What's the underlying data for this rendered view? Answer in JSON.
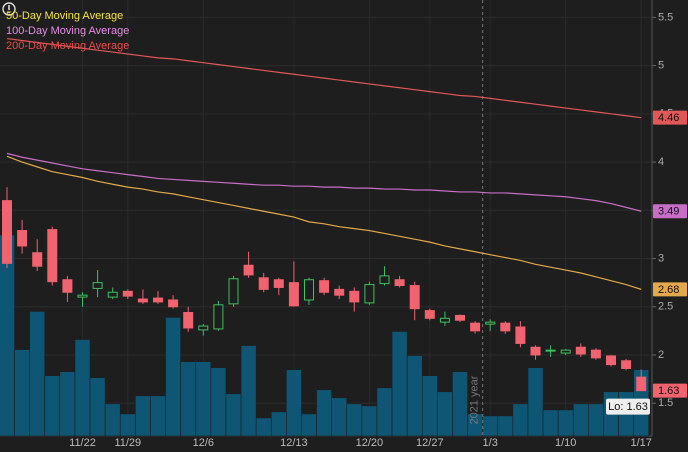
{
  "chart_data": {
    "type": "candlestick",
    "categories": [
      null,
      null,
      null,
      null,
      null,
      "11/22",
      null,
      null,
      "11/29",
      null,
      null,
      null,
      null,
      "12/6",
      null,
      null,
      null,
      null,
      null,
      "12/13",
      null,
      null,
      null,
      null,
      "12/20",
      null,
      null,
      null,
      "12/27",
      null,
      null,
      null,
      "1/3",
      null,
      null,
      null,
      null,
      "1/10",
      null,
      null,
      null,
      null,
      "1/17"
    ],
    "open": [
      3.6,
      3.29,
      3.06,
      3.3,
      2.78,
      2.6,
      2.69,
      2.6,
      2.66,
      2.58,
      2.59,
      2.57,
      2.44,
      2.26,
      2.27,
      2.53,
      2.93,
      2.8,
      2.78,
      2.75,
      2.57,
      2.77,
      2.68,
      2.66,
      2.54,
      2.74,
      2.78,
      2.72,
      2.46,
      2.34,
      2.41,
      2.33,
      2.32,
      2.33,
      2.29,
      2.08,
      2.04,
      2.02,
      2.08,
      2.05,
      1.99,
      1.94,
      1.77
    ],
    "high": [
      3.74,
      3.4,
      3.2,
      3.33,
      2.82,
      2.65,
      2.88,
      2.7,
      2.68,
      2.68,
      2.66,
      2.62,
      2.5,
      2.32,
      2.56,
      2.82,
      3.07,
      2.85,
      2.8,
      2.97,
      2.8,
      2.8,
      2.72,
      2.7,
      2.76,
      2.92,
      2.82,
      2.76,
      2.48,
      2.45,
      2.42,
      2.35,
      2.37,
      2.35,
      2.35,
      2.1,
      2.1,
      2.06,
      2.12,
      2.07,
      2.0,
      1.96,
      1.85
    ],
    "low": [
      2.9,
      3.05,
      2.87,
      2.72,
      2.55,
      2.5,
      2.6,
      2.58,
      2.58,
      2.53,
      2.53,
      2.48,
      2.24,
      2.2,
      2.25,
      2.5,
      2.8,
      2.65,
      2.62,
      2.5,
      2.52,
      2.62,
      2.58,
      2.45,
      2.52,
      2.72,
      2.7,
      2.36,
      2.36,
      2.3,
      2.34,
      2.22,
      2.25,
      2.22,
      2.08,
      1.95,
      1.98,
      2.0,
      1.98,
      1.95,
      1.88,
      1.84,
      1.63
    ],
    "close": [
      2.95,
      3.13,
      2.92,
      2.76,
      2.65,
      2.62,
      2.75,
      2.65,
      2.61,
      2.55,
      2.55,
      2.5,
      2.28,
      2.3,
      2.52,
      2.79,
      2.83,
      2.68,
      2.7,
      2.51,
      2.78,
      2.65,
      2.62,
      2.55,
      2.73,
      2.82,
      2.72,
      2.48,
      2.38,
      2.38,
      2.36,
      2.25,
      2.34,
      2.25,
      2.12,
      2.0,
      2.05,
      2.05,
      2.01,
      1.97,
      1.9,
      1.86,
      1.63
    ],
    "volume": [
      100,
      43,
      62,
      30,
      32,
      48,
      29,
      16,
      11,
      20,
      20,
      59,
      37,
      37,
      34,
      21,
      45,
      9,
      12,
      33,
      11,
      23,
      19,
      16,
      15,
      24,
      52,
      40,
      30,
      22,
      32,
      11,
      10,
      10,
      16,
      34,
      13,
      13,
      16,
      16,
      22,
      22,
      33
    ],
    "series": [
      {
        "name": "50-Day Moving Average",
        "color": "#e3a94a",
        "label_color": "#f2e43c",
        "values": [
          4.06,
          4.0,
          3.95,
          3.9,
          3.87,
          3.84,
          3.8,
          3.77,
          3.74,
          3.72,
          3.69,
          3.67,
          3.64,
          3.61,
          3.58,
          3.55,
          3.52,
          3.49,
          3.46,
          3.43,
          3.38,
          3.36,
          3.33,
          3.31,
          3.29,
          3.26,
          3.23,
          3.2,
          3.17,
          3.13,
          3.1,
          3.07,
          3.04,
          3.01,
          2.98,
          2.94,
          2.91,
          2.88,
          2.85,
          2.81,
          2.77,
          2.73,
          2.68
        ]
      },
      {
        "name": "100-Day Moving Average",
        "color": "#c86ec8",
        "label_color": "#e58ce5",
        "values": [
          4.09,
          4.05,
          4.02,
          3.99,
          3.96,
          3.93,
          3.91,
          3.89,
          3.87,
          3.85,
          3.83,
          3.82,
          3.81,
          3.8,
          3.79,
          3.78,
          3.77,
          3.76,
          3.76,
          3.75,
          3.75,
          3.74,
          3.74,
          3.73,
          3.73,
          3.72,
          3.72,
          3.71,
          3.71,
          3.7,
          3.69,
          3.69,
          3.68,
          3.68,
          3.67,
          3.66,
          3.65,
          3.64,
          3.62,
          3.6,
          3.57,
          3.53,
          3.49
        ]
      },
      {
        "name": "200-Day Moving Average",
        "color": "#e05858",
        "label_color": "#f04848",
        "values": [
          5.28,
          5.26,
          5.24,
          5.22,
          5.2,
          5.18,
          5.16,
          5.14,
          5.12,
          5.1,
          5.08,
          5.07,
          5.05,
          5.03,
          5.01,
          4.99,
          4.97,
          4.95,
          4.93,
          4.91,
          4.89,
          4.87,
          4.85,
          4.83,
          4.81,
          4.79,
          4.77,
          4.75,
          4.73,
          4.71,
          4.69,
          4.68,
          4.66,
          4.64,
          4.62,
          4.6,
          4.58,
          4.56,
          4.54,
          4.52,
          4.5,
          4.48,
          4.46
        ]
      }
    ],
    "ylim": [
      1.16,
      5.68
    ],
    "yticks": [
      1.5,
      2,
      2.5,
      3,
      3.5,
      4,
      4.5,
      5,
      5.5
    ],
    "annotations": [
      "Lo: 1.63",
      "2021 year"
    ],
    "up_color": "#3fbf5f",
    "down_color": "#f0636f",
    "volume_color": "#0e5673",
    "grid": true
  }
}
